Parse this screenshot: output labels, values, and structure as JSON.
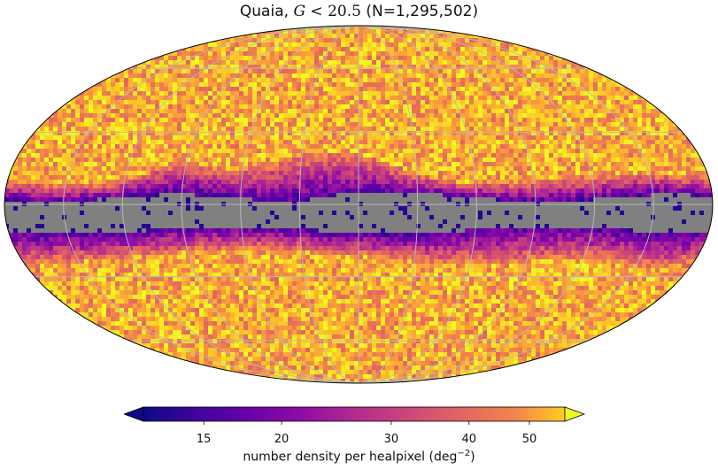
{
  "title": {
    "prefix": "Quaia, ",
    "math_var": "G",
    "math_rel": " < 20.5",
    "suffix": " (N=1,295,502)"
  },
  "map": {
    "projection": "mollweide",
    "masked_region": "galactic plane",
    "masked_color": "#808080",
    "graticule_color": "#b8b8b8",
    "graticule": true,
    "outline_color": "#000000"
  },
  "colorbar": {
    "colormap": "plasma",
    "scale": "log",
    "min": 12,
    "max": 57,
    "extend": "both",
    "ticks": [
      15,
      20,
      30,
      40,
      50
    ],
    "tick_labels": [
      "15",
      "20",
      "30",
      "40",
      "50"
    ],
    "label_text": "number density per healpixel (deg",
    "label_exp": "−2",
    "label_close": ")"
  }
}
